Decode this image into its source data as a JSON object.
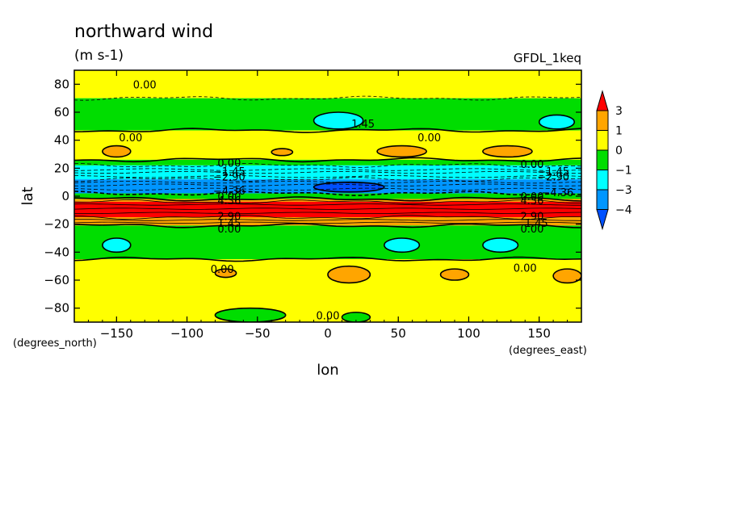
{
  "chart_data": {
    "type": "heatmap",
    "title": "northward wind",
    "units": "(m s-1)",
    "model": "GFDL_1keq",
    "xlabel": "lon",
    "ylabel": "lat",
    "x_unit_label": "(degrees_east)",
    "y_unit_label": "(degrees_north)",
    "xlim": [
      -180,
      180
    ],
    "ylim": [
      -90,
      90
    ],
    "x_ticks": [
      {
        "v": -150,
        "label": "−150"
      },
      {
        "v": -100,
        "label": "−100"
      },
      {
        "v": -50,
        "label": "−50"
      },
      {
        "v": 0,
        "label": "0"
      },
      {
        "v": 50,
        "label": "50"
      },
      {
        "v": 100,
        "label": "100"
      },
      {
        "v": 150,
        "label": "150"
      }
    ],
    "y_ticks": [
      {
        "v": 80,
        "label": "80"
      },
      {
        "v": 60,
        "label": "60"
      },
      {
        "v": 40,
        "label": "40"
      },
      {
        "v": 20,
        "label": "20"
      },
      {
        "v": 0,
        "label": "0"
      },
      {
        "v": -20,
        "label": "−20"
      },
      {
        "v": -40,
        "label": "−40"
      },
      {
        "v": -60,
        "label": "−60"
      },
      {
        "v": -80,
        "label": "−80"
      }
    ],
    "colorbar": {
      "bins": [
        {
          "from": 3,
          "to": null,
          "color": "#ff0000"
        },
        {
          "from": 1,
          "to": 3,
          "color": "#ffa500"
        },
        {
          "from": 0,
          "to": 1,
          "color": "#ffff00"
        },
        {
          "from": -1,
          "to": 0,
          "color": "#00dd00"
        },
        {
          "from": -3,
          "to": -1,
          "color": "#00ffff"
        },
        {
          "from": -4,
          "to": -3,
          "color": "#0096ff"
        },
        {
          "from": null,
          "to": -4,
          "color": "#0050ff"
        }
      ],
      "labels": [
        "3",
        "1",
        "0",
        "−1",
        "−3",
        "−4"
      ]
    },
    "lat_bands": [
      {
        "lat": [
          70,
          90
        ],
        "level": "0-1"
      },
      {
        "lat": [
          47,
          70
        ],
        "level": "-1-0"
      },
      {
        "lat": [
          26,
          47
        ],
        "level": "0-1"
      },
      {
        "lat": [
          22,
          26
        ],
        "level": "-1-0"
      },
      {
        "lat": [
          12,
          22
        ],
        "level": "-3--1"
      },
      {
        "lat": [
          2,
          12
        ],
        "level": "-4--3"
      },
      {
        "lat": [
          -2,
          2
        ],
        "level": "-1-0"
      },
      {
        "lat": [
          -4,
          -2
        ],
        "level": "1-3"
      },
      {
        "lat": [
          -15,
          -4
        ],
        "level": ">3"
      },
      {
        "lat": [
          -21,
          -15
        ],
        "level": "1-3"
      },
      {
        "lat": [
          -45,
          -21
        ],
        "level": "-1-0"
      },
      {
        "lat": [
          -90,
          -45
        ],
        "level": "0-1"
      }
    ],
    "patches": [
      {
        "lon": [
          -160,
          -140
        ],
        "lat": [
          28,
          36
        ],
        "level": "1-3"
      },
      {
        "lon": [
          -40,
          -25
        ],
        "lat": [
          29,
          34
        ],
        "level": "1-3"
      },
      {
        "lon": [
          35,
          70
        ],
        "lat": [
          28,
          36
        ],
        "level": "1-3"
      },
      {
        "lon": [
          110,
          145
        ],
        "lat": [
          28,
          36
        ],
        "level": "1-3"
      },
      {
        "lon": [
          -10,
          25
        ],
        "lat": [
          48,
          60
        ],
        "level": "-3--1"
      },
      {
        "lon": [
          150,
          175
        ],
        "lat": [
          48,
          58
        ],
        "level": "-3--1"
      },
      {
        "lon": [
          -10,
          40
        ],
        "lat": [
          3,
          10
        ],
        "level": "<-4"
      },
      {
        "lon": [
          -160,
          -140
        ],
        "lat": [
          -40,
          -30
        ],
        "level": "-3--1"
      },
      {
        "lon": [
          40,
          65
        ],
        "lat": [
          -40,
          -30
        ],
        "level": "-3--1"
      },
      {
        "lon": [
          110,
          135
        ],
        "lat": [
          -40,
          -30
        ],
        "level": "-3--1"
      },
      {
        "lon": [
          0,
          30
        ],
        "lat": [
          -62,
          -50
        ],
        "level": "1-3"
      },
      {
        "lon": [
          -80,
          -65
        ],
        "lat": [
          -58,
          -52
        ],
        "level": "1-3"
      },
      {
        "lon": [
          80,
          100
        ],
        "lat": [
          -60,
          -52
        ],
        "level": "1-3"
      },
      {
        "lon": [
          160,
          180
        ],
        "lat": [
          -62,
          -52
        ],
        "level": "1-3"
      },
      {
        "lon": [
          -80,
          -30
        ],
        "lat": [
          -90,
          -80
        ],
        "level": "-1-0"
      },
      {
        "lon": [
          10,
          30
        ],
        "lat": [
          -90,
          -83
        ],
        "level": "-1-0"
      }
    ],
    "contour_labels": [
      {
        "lon": -130,
        "lat": 80,
        "text": "0.00"
      },
      {
        "lon": -140,
        "lat": 42,
        "text": "0.00"
      },
      {
        "lon": 25,
        "lat": 52,
        "text": "1.45"
      },
      {
        "lon": 72,
        "lat": 42,
        "text": "0.00"
      },
      {
        "lon": -70,
        "lat": 24,
        "text": "0.00"
      },
      {
        "lon": -70,
        "lat": 18,
        "text": "−1.45"
      },
      {
        "lon": -70,
        "lat": 14,
        "text": "−2.90"
      },
      {
        "lon": -70,
        "lat": 4,
        "text": "−4.36"
      },
      {
        "lon": -70,
        "lat": 0,
        "text": "0.00"
      },
      {
        "lon": -70,
        "lat": -3,
        "text": "4.36"
      },
      {
        "lon": -70,
        "lat": -14,
        "text": "2.90"
      },
      {
        "lon": -70,
        "lat": -19,
        "text": "1.45"
      },
      {
        "lon": -70,
        "lat": -23,
        "text": "0.00"
      },
      {
        "lon": -75,
        "lat": -52,
        "text": "0.00"
      },
      {
        "lon": 145,
        "lat": 23,
        "text": "0.00"
      },
      {
        "lon": 160,
        "lat": 18,
        "text": "−1.45"
      },
      {
        "lon": 160,
        "lat": 14,
        "text": "−2.90"
      },
      {
        "lon": 163,
        "lat": 3,
        "text": "−4.36"
      },
      {
        "lon": 145,
        "lat": 0,
        "text": "0.00"
      },
      {
        "lon": 145,
        "lat": -3,
        "text": "4.36"
      },
      {
        "lon": 145,
        "lat": -14,
        "text": "2.90"
      },
      {
        "lon": 148,
        "lat": -19,
        "text": "1.45"
      },
      {
        "lon": 145,
        "lat": -23,
        "text": "0.00"
      },
      {
        "lon": 140,
        "lat": -51,
        "text": "0.00"
      },
      {
        "lon": 0,
        "lat": -85,
        "text": "0.00"
      }
    ]
  }
}
